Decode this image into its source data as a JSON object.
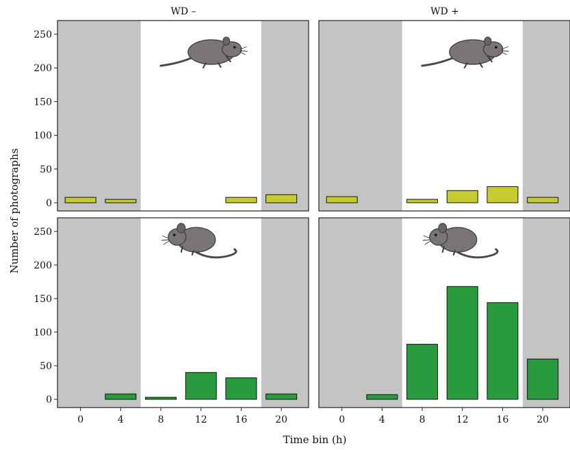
{
  "chart_data": {
    "type": "bar",
    "xlabel": "Time bin (h)",
    "ylabel": "Number of photographs",
    "columns": [
      "WD –",
      "WD +"
    ],
    "x_categories": [
      "0",
      "4",
      "8",
      "12",
      "16",
      "20"
    ],
    "ylim": [
      0,
      260
    ],
    "yticks": [
      0,
      50,
      100,
      150,
      200,
      250
    ],
    "night_shading": {
      "color": "#c4c4c4",
      "shaded_bins": [
        "0",
        "4",
        "20"
      ]
    },
    "panels": [
      {
        "row": 1,
        "column": "WD –",
        "animal": "mouse-icon-crawling",
        "bar_color": "#c6cc2e",
        "values": [
          8,
          5,
          0,
          0,
          8,
          12
        ]
      },
      {
        "row": 1,
        "column": "WD +",
        "animal": "mouse-icon-crawling",
        "bar_color": "#c6cc2e",
        "values": [
          9,
          0,
          5,
          18,
          24,
          8
        ]
      },
      {
        "row": 2,
        "column": "WD –",
        "animal": "mouse-icon-sitting",
        "bar_color": "#2a9a3e",
        "values": [
          0,
          8,
          3,
          40,
          32,
          8
        ]
      },
      {
        "row": 2,
        "column": "WD +",
        "animal": "mouse-icon-sitting",
        "bar_color": "#2a9a3e",
        "values": [
          0,
          7,
          82,
          168,
          144,
          60
        ]
      }
    ]
  }
}
